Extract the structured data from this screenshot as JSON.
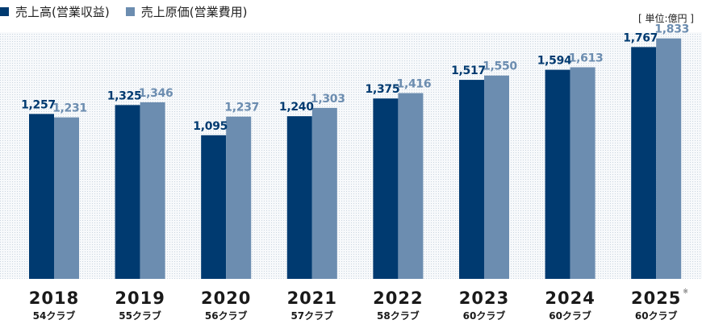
{
  "chart_data": {
    "type": "bar",
    "unit_label": "[ 単位:億円 ]",
    "categories": [
      "2018",
      "2019",
      "2020",
      "2021",
      "2022",
      "2023",
      "2024",
      "2025"
    ],
    "category_notes": {
      "2025": "※"
    },
    "sub_labels": [
      "54クラブ",
      "55クラブ",
      "56クラブ",
      "57クラブ",
      "58クラブ",
      "60クラブ",
      "60クラブ",
      "60クラブ"
    ],
    "series": [
      {
        "name": "売上高(営業収益)",
        "color": "#003a70",
        "values": [
          1257,
          1325,
          1095,
          1240,
          1375,
          1517,
          1594,
          1767
        ],
        "value_labels": [
          "1,257",
          "1,325",
          "1,095",
          "1,240",
          "1,375",
          "1,517",
          "1,594",
          "1,767"
        ]
      },
      {
        "name": "売上原価(営業費用)",
        "color": "#6c8db0",
        "values": [
          1231,
          1346,
          1237,
          1303,
          1416,
          1550,
          1613,
          1833
        ],
        "value_labels": [
          "1,231",
          "1,346",
          "1,237",
          "1,303",
          "1,416",
          "1,550",
          "1,613",
          "1,833"
        ]
      }
    ],
    "ylim": [
      0,
      1880
    ],
    "grid": false,
    "legend_position": "top-left"
  }
}
